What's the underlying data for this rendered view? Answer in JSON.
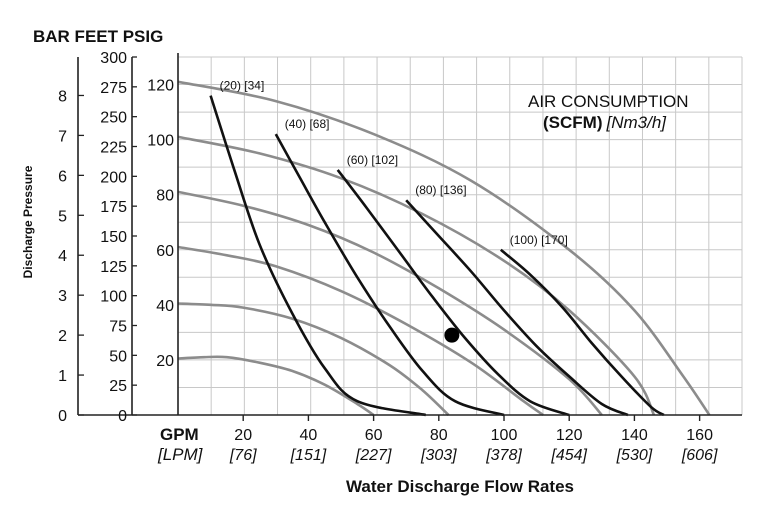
{
  "chart_data": {
    "type": "line",
    "header_units": "BAR FEET PSIG",
    "ylabel": "Discharge Pressure",
    "xlabel": "Water Discharge Flow Rates",
    "x_unit_gpm": "GPM",
    "x_unit_lpm": "[LPM]",
    "legend_title": "AIR CONSUMPTION",
    "legend_subtitle_bold": "(SCFM)",
    "legend_subtitle_ital": "[Nm3/h]",
    "x_gpm_ticks": [
      "20",
      "40",
      "60",
      "80",
      "100",
      "120",
      "140",
      "160"
    ],
    "x_lpm_ticks": [
      "[76]",
      "[151]",
      "[227]",
      "[303]",
      "[378]",
      "[454]",
      "[530]",
      "[606]"
    ],
    "psig_ticks": [
      "20",
      "40",
      "60",
      "80",
      "100",
      "120"
    ],
    "feet_ticks": [
      "0",
      "25",
      "50",
      "75",
      "100",
      "125",
      "150",
      "175",
      "200",
      "225",
      "250",
      "275",
      "300"
    ],
    "bar_ticks": [
      "0",
      "1",
      "2",
      "3",
      "4",
      "5",
      "6",
      "7",
      "8"
    ],
    "xlim": [
      0,
      173
    ],
    "ylim_psig": [
      0,
      130
    ],
    "grid": true,
    "head_curves": [
      {
        "points": [
          [
            0,
            20.5
          ],
          [
            8,
            21
          ],
          [
            15,
            21
          ],
          [
            25,
            19
          ],
          [
            35,
            16
          ],
          [
            45,
            11
          ],
          [
            55,
            4
          ],
          [
            60,
            0
          ]
        ]
      },
      {
        "points": [
          [
            0,
            40.5
          ],
          [
            10,
            40
          ],
          [
            20,
            39
          ],
          [
            35,
            35
          ],
          [
            50,
            28
          ],
          [
            65,
            18
          ],
          [
            75,
            9
          ],
          [
            83,
            0
          ]
        ]
      },
      {
        "points": [
          [
            0,
            61
          ],
          [
            15,
            58
          ],
          [
            30,
            54
          ],
          [
            50,
            45
          ],
          [
            70,
            33
          ],
          [
            90,
            19
          ],
          [
            106,
            5
          ],
          [
            112,
            0
          ]
        ]
      },
      {
        "points": [
          [
            0,
            81
          ],
          [
            20,
            76
          ],
          [
            40,
            69
          ],
          [
            60,
            59
          ],
          [
            80,
            46
          ],
          [
            100,
            31
          ],
          [
            120,
            13
          ],
          [
            130,
            0
          ]
        ]
      },
      {
        "points": [
          [
            0,
            101
          ],
          [
            25,
            95
          ],
          [
            50,
            86
          ],
          [
            75,
            73
          ],
          [
            100,
            56
          ],
          [
            120,
            38
          ],
          [
            140,
            14
          ],
          [
            146,
            0
          ]
        ]
      },
      {
        "points": [
          [
            0,
            121
          ],
          [
            30,
            114
          ],
          [
            60,
            102
          ],
          [
            90,
            85
          ],
          [
            120,
            60
          ],
          [
            140,
            38
          ],
          [
            155,
            14
          ],
          [
            163,
            0
          ]
        ]
      }
    ],
    "air_curves": [
      {
        "label": "(20) [34]",
        "points": [
          [
            10,
            116
          ],
          [
            17,
            90
          ],
          [
            25,
            62
          ],
          [
            35,
            37
          ],
          [
            45,
            17
          ],
          [
            55,
            5
          ],
          [
            76,
            0
          ]
        ]
      },
      {
        "label": "(40) [68]",
        "points": [
          [
            30,
            102
          ],
          [
            37,
            87
          ],
          [
            45,
            70
          ],
          [
            55,
            50
          ],
          [
            65,
            32
          ],
          [
            75,
            16
          ],
          [
            85,
            5
          ],
          [
            100,
            0
          ]
        ]
      },
      {
        "label": "(60) [102]",
        "points": [
          [
            49,
            89
          ],
          [
            58,
            75
          ],
          [
            68,
            59
          ],
          [
            78,
            43
          ],
          [
            88,
            28
          ],
          [
            98,
            15
          ],
          [
            108,
            5
          ],
          [
            120,
            0
          ]
        ]
      },
      {
        "label": "(80) [136]",
        "points": [
          [
            70,
            78
          ],
          [
            80,
            65
          ],
          [
            90,
            52
          ],
          [
            100,
            38
          ],
          [
            110,
            25
          ],
          [
            120,
            14
          ],
          [
            130,
            4
          ],
          [
            138,
            0
          ]
        ]
      },
      {
        "label": "(100) [170]",
        "points": [
          [
            99,
            60
          ],
          [
            108,
            51
          ],
          [
            118,
            39
          ],
          [
            127,
            26
          ],
          [
            136,
            14
          ],
          [
            145,
            3
          ],
          [
            149,
            0
          ]
        ]
      }
    ],
    "marker": {
      "x": 84,
      "y": 29
    }
  }
}
